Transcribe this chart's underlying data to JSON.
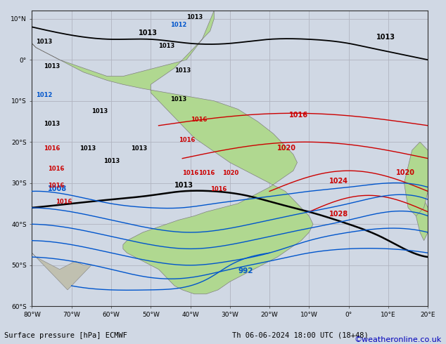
{
  "title_left": "Surface pressure [hPa] ECMWF",
  "title_right": "Th 06-06-2024 18:00 UTC (18+48)",
  "copyright": "©weatheronline.co.uk",
  "bg_color": "#d0d8e4",
  "land_color": "#b0d890",
  "land_edge": "#808080",
  "grid_color": "#b0b4c0",
  "lon_min": -80,
  "lon_max": 20,
  "lat_min": -58,
  "lat_max": 12,
  "figsize": [
    6.34,
    4.9
  ],
  "dpi": 100,
  "black_isobar_color": "#000000",
  "red_isobar_color": "#cc0000",
  "blue_isobar_color": "#0055cc",
  "copyright_color": "#0000bb"
}
